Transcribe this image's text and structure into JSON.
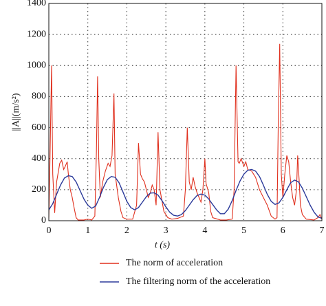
{
  "chart_data": {
    "type": "line",
    "xlabel": "t (s)",
    "ylabel": "||A||(m/s²)",
    "xlim": [
      0,
      7
    ],
    "xticks": [
      0,
      1,
      2,
      3,
      4,
      5,
      6,
      7
    ],
    "ylim": [
      0,
      1400
    ],
    "yticks": [
      0,
      200,
      400,
      600,
      800,
      1000,
      1200,
      1400
    ],
    "grid": true,
    "series": [
      {
        "name": "The norm of acceleration",
        "color": "#e0301e",
        "x": [
          0,
          0.03,
          0.07,
          0.1,
          0.15,
          0.2,
          0.28,
          0.33,
          0.38,
          0.42,
          0.47,
          0.5,
          0.55,
          0.6,
          0.65,
          0.7,
          0.75,
          0.9,
          1.0,
          1.1,
          1.18,
          1.22,
          1.25,
          1.28,
          1.32,
          1.38,
          1.45,
          1.52,
          1.57,
          1.62,
          1.67,
          1.7,
          1.78,
          1.85,
          1.9,
          2.0,
          2.15,
          2.25,
          2.3,
          2.35,
          2.4,
          2.45,
          2.5,
          2.55,
          2.6,
          2.65,
          2.7,
          2.75,
          2.8,
          2.85,
          2.95,
          3.05,
          3.15,
          3.3,
          3.45,
          3.5,
          3.55,
          3.6,
          3.65,
          3.7,
          3.75,
          3.8,
          3.85,
          3.9,
          3.95,
          4.0,
          4.03,
          4.1,
          4.15,
          4.2,
          4.4,
          4.55,
          4.7,
          4.75,
          4.8,
          4.85,
          4.88,
          4.93,
          5.0,
          5.05,
          5.1,
          5.2,
          5.3,
          5.4,
          5.5,
          5.6,
          5.7,
          5.8,
          5.85,
          5.88,
          5.92,
          5.96,
          6.0,
          6.05,
          6.1,
          6.15,
          6.2,
          6.25,
          6.3,
          6.35,
          6.38,
          6.42,
          6.45,
          6.5,
          6.6,
          6.8,
          6.9,
          6.95,
          7.0
        ],
        "values": [
          20,
          400,
          1000,
          300,
          50,
          250,
          370,
          390,
          330,
          350,
          380,
          300,
          200,
          150,
          80,
          20,
          5,
          5,
          10,
          5,
          30,
          450,
          930,
          400,
          150,
          250,
          320,
          370,
          350,
          420,
          820,
          300,
          150,
          60,
          20,
          10,
          10,
          100,
          500,
          300,
          270,
          250,
          200,
          150,
          180,
          230,
          200,
          100,
          570,
          200,
          60,
          20,
          10,
          15,
          30,
          200,
          600,
          250,
          200,
          280,
          220,
          180,
          150,
          120,
          200,
          400,
          240,
          180,
          60,
          20,
          5,
          5,
          10,
          200,
          1000,
          380,
          370,
          400,
          350,
          380,
          330,
          320,
          280,
          200,
          150,
          100,
          30,
          10,
          20,
          600,
          1140,
          300,
          150,
          300,
          420,
          380,
          250,
          150,
          100,
          200,
          420,
          250,
          100,
          40,
          10,
          5,
          20,
          40,
          10
        ]
      },
      {
        "name": "The filtering norm of the acceleration",
        "color": "#2b3a9a",
        "x": [
          0,
          0.1,
          0.2,
          0.3,
          0.4,
          0.5,
          0.6,
          0.7,
          0.8,
          0.9,
          1.0,
          1.1,
          1.2,
          1.3,
          1.4,
          1.5,
          1.6,
          1.7,
          1.8,
          1.9,
          2.0,
          2.1,
          2.2,
          2.3,
          2.4,
          2.5,
          2.6,
          2.7,
          2.8,
          2.9,
          3.0,
          3.1,
          3.2,
          3.3,
          3.4,
          3.5,
          3.6,
          3.7,
          3.8,
          3.9,
          4.0,
          4.1,
          4.2,
          4.3,
          4.4,
          4.5,
          4.6,
          4.7,
          4.8,
          4.9,
          5.0,
          5.1,
          5.2,
          5.3,
          5.4,
          5.5,
          5.6,
          5.7,
          5.8,
          5.9,
          6.0,
          6.1,
          6.2,
          6.3,
          6.4,
          6.5,
          6.6,
          6.7,
          6.8,
          6.9,
          7.0
        ],
        "values": [
          70,
          110,
          170,
          230,
          275,
          290,
          285,
          250,
          195,
          140,
          100,
          80,
          95,
          150,
          215,
          265,
          285,
          280,
          245,
          185,
          125,
          85,
          70,
          85,
          120,
          155,
          178,
          180,
          165,
          130,
          90,
          55,
          35,
          30,
          40,
          65,
          100,
          135,
          162,
          172,
          165,
          140,
          105,
          70,
          45,
          45,
          75,
          130,
          195,
          255,
          300,
          325,
          330,
          320,
          285,
          230,
          170,
          125,
          105,
          115,
          150,
          200,
          245,
          262,
          250,
          210,
          155,
          100,
          55,
          25,
          15
        ]
      }
    ]
  }
}
